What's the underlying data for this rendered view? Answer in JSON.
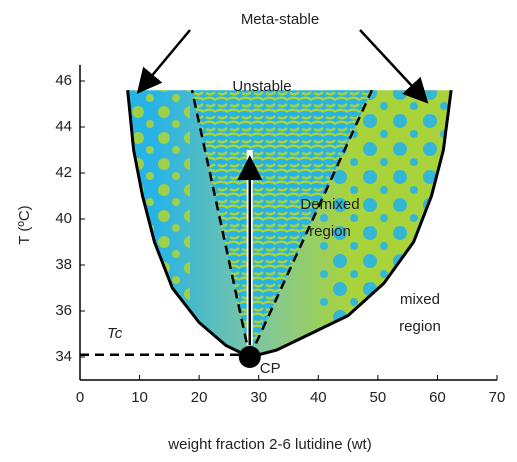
{
  "chart_data": {
    "type": "line",
    "x_label": "weight fraction 2-6 lutidine (wt)",
    "y_label": "T (ºC)",
    "xlim": [
      0,
      70
    ],
    "xticks": [
      0,
      10,
      20,
      30,
      40,
      50,
      60,
      70
    ],
    "ylim": [
      33,
      46.7
    ],
    "yticks": [
      34,
      36,
      38,
      40,
      42,
      44,
      46
    ],
    "series": [
      {
        "color": "#000000",
        "dash": false,
        "x": [
          8,
          9,
          10.5,
          12.5,
          15.5,
          20,
          24.5,
          28.5,
          33,
          37,
          45,
          51,
          56,
          59,
          61,
          62.3
        ],
        "values": [
          45.6,
          43,
          41,
          39,
          37,
          35.5,
          34.5,
          34,
          34.3,
          34.8,
          35.8,
          37.2,
          39,
          41,
          43,
          45.6
        ]
      },
      {
        "color": "#000000",
        "dash": true,
        "x": [
          28.5,
          18.8
        ],
        "values": [
          34,
          45.6
        ]
      },
      {
        "color": "#000000",
        "dash": true,
        "x": [
          28.5,
          49
        ],
        "values": [
          34,
          45.6
        ]
      },
      {
        "color": "#000000",
        "dash": true,
        "x": [
          0,
          28.5
        ],
        "values": [
          34.1,
          34.1
        ]
      }
    ],
    "points": [
      {
        "x": 28.5,
        "y": 34,
        "label": "CP"
      }
    ],
    "annotations": [
      "Meta-stable",
      "Unstable",
      "Demixed region",
      "mixed region",
      "Tc"
    ]
  }
}
